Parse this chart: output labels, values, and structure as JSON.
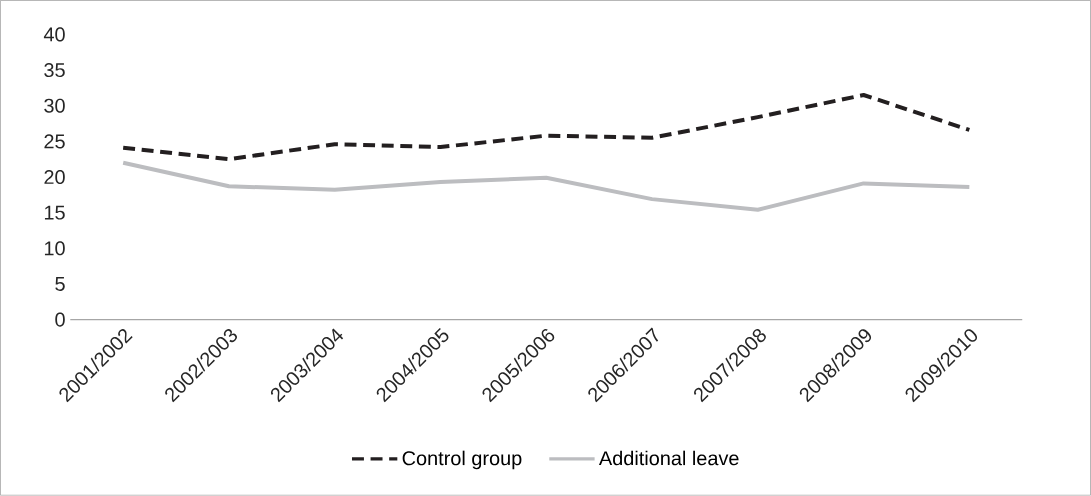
{
  "chart_data": {
    "type": "line",
    "categories": [
      "2001/2002",
      "2002/2003",
      "2003/2004",
      "2004/2005",
      "2005/2006",
      "2006/2007",
      "2007/2008",
      "2008/2009",
      "2009/2010"
    ],
    "series": [
      {
        "name": "Control group",
        "color": "#231f20",
        "line_style": "dashed",
        "values": [
          24.1,
          22.5,
          24.6,
          24.2,
          25.8,
          25.5,
          28.4,
          31.5,
          26.6
        ]
      },
      {
        "name": "Additional leave",
        "color": "#bcbdc0",
        "line_style": "solid",
        "values": [
          22.0,
          18.7,
          18.2,
          19.3,
          19.9,
          16.9,
          15.4,
          19.1,
          18.6
        ]
      }
    ],
    "ylim": [
      0,
      40
    ],
    "yticks": [
      0,
      5,
      10,
      15,
      20,
      25,
      30,
      35,
      40
    ],
    "grid": false,
    "legend": "bottom",
    "marker": "none"
  }
}
